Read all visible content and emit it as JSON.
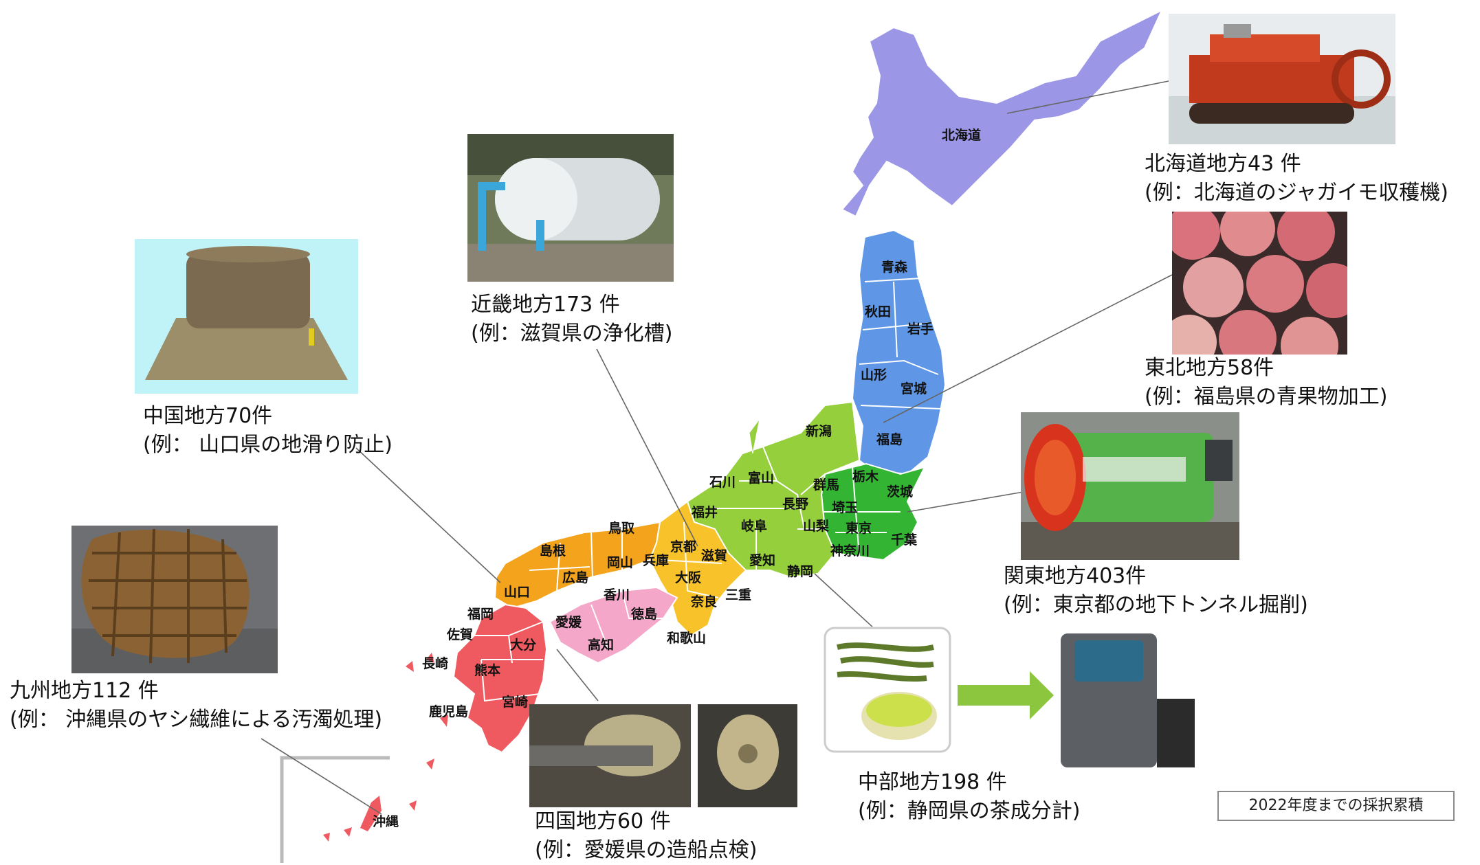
{
  "colors": {
    "hokkaido": "#9b97e6",
    "tohoku": "#5f97e6",
    "kanto": "#33b533",
    "chubu": "#95cf3c",
    "kinki": "#f7c22a",
    "chugoku": "#f3a31c",
    "shikoku": "#f4a7c8",
    "kyushu": "#ee5a5f"
  },
  "prefectures": {
    "hokkaido": "北海道",
    "aomori": "青森",
    "akita": "秋田",
    "iwate": "岩手",
    "yamagata": "山形",
    "miyagi": "宮城",
    "fukushima": "福島",
    "niigata": "新潟",
    "tochigi": "栃木",
    "gunma": "群馬",
    "ibaraki": "茨城",
    "saitama": "埼玉",
    "tokyo": "東京",
    "chiba": "千葉",
    "kanagawa": "神奈川",
    "ishikawa": "石川",
    "toyama": "富山",
    "nagano": "長野",
    "fukui": "福井",
    "gifu": "岐阜",
    "yamanashi": "山梨",
    "aichi": "愛知",
    "shizuoka": "静岡",
    "kyoto": "京都",
    "shiga": "滋賀",
    "hyogo": "兵庫",
    "osaka": "大阪",
    "nara": "奈良",
    "mie": "三重",
    "wakayama": "和歌山",
    "tottori": "鳥取",
    "shimane": "島根",
    "okayama": "岡山",
    "hiroshima": "広島",
    "yamaguchi": "山口",
    "kagawa": "香川",
    "tokushima": "徳島",
    "ehime": "愛媛",
    "kochi": "高知",
    "fukuoka": "福岡",
    "saga": "佐賀",
    "oita": "大分",
    "nagasaki": "長崎",
    "kumamoto": "熊本",
    "miyazaki": "宮崎",
    "kagoshima": "鹿児島",
    "okinawa": "沖縄"
  },
  "regions": {
    "hokkaido": {
      "title": "北海道地方43 件",
      "example": "(例：北海道のジャガイモ収穫機)",
      "photo": "potato-harvester"
    },
    "tohoku": {
      "title": "東北地方58件",
      "example": "(例：福島県の青果物加工)",
      "photo": "peaches"
    },
    "kanto": {
      "title": "関東地方403件",
      "example": "(例：東京都の地下トンネル掘削)",
      "photo": "tunnel-boring-machine"
    },
    "chubu": {
      "title": "中部地方198 件",
      "example": "(例：静岡県の茶成分計)",
      "photo": "tea-analyzer"
    },
    "kinki": {
      "title": "近畿地方173 件",
      "example": "(例：滋賀県の浄化槽)",
      "photo": "septic-tank"
    },
    "chugoku": {
      "title": "中国地方70件",
      "example": "(例： 山口県の地滑り防止)",
      "photo": "erosion-mat"
    },
    "shikoku": {
      "title": "四国地方60 件",
      "example": "(例：愛媛県の造船点検)",
      "photo": "ship-propellers"
    },
    "kyushu": {
      "title": "九州地方112 件",
      "example": "(例： 沖縄県のヤシ繊維による汚濁処理)",
      "photo": "coir-log"
    }
  },
  "note": "2022年度までの採択累積"
}
